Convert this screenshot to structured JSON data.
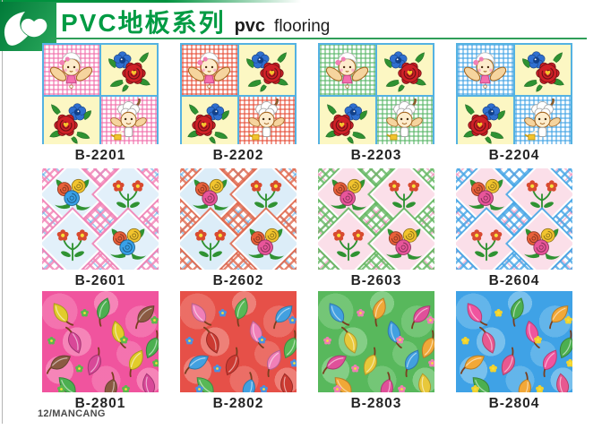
{
  "header": {
    "title_cn": "PVC地板系列",
    "title_en_bold": "pvc",
    "title_en_rest": "flooring"
  },
  "footer": {
    "label": "12/MANCANG"
  },
  "palette": {
    "brand_green": "#009b43",
    "header_rule": "#2f9e58",
    "frame_blue": "#54b2e2",
    "quad_yellow": "#fcf7c3",
    "rose_red": "#cf2027",
    "flower_blue": "#2f6fd0",
    "leaf_green": "#2f9232",
    "code_text": "#242424"
  },
  "products": [
    {
      "code": "B-2201",
      "type": "tile",
      "gingham": "#f06aa8"
    },
    {
      "code": "B-2202",
      "type": "tile",
      "gingham": "#e64a33"
    },
    {
      "code": "B-2203",
      "type": "tile",
      "gingham": "#55b564"
    },
    {
      "code": "B-2204",
      "type": "tile",
      "gingham": "#3da0e4"
    },
    {
      "code": "B-2601",
      "type": "lattice",
      "theme": "#f283b6",
      "accent": "#4aa0e0",
      "center": "#e2f0fa",
      "bouquet": [
        "#e8603a",
        "#f2c42e",
        "#38a0e8"
      ]
    },
    {
      "code": "B-2602",
      "type": "lattice",
      "theme": "#e06a50",
      "accent": "#4aa0e0",
      "center": "#dcedf8",
      "bouquet": [
        "#e8603a",
        "#f2c42e",
        "#e8559a"
      ]
    },
    {
      "code": "B-2603",
      "type": "lattice",
      "theme": "#66b864",
      "accent": "#e878a8",
      "center": "#fbdfe9",
      "bouquet": [
        "#e8603a",
        "#f2c42e",
        "#e8559a"
      ]
    },
    {
      "code": "B-2604",
      "type": "lattice",
      "theme": "#48a6e6",
      "accent": "#ee7fb2",
      "center": "#fbdfe9",
      "bouquet": [
        "#e8603a",
        "#f2c42e",
        "#e8559a"
      ]
    },
    {
      "code": "B-2801",
      "type": "leaves",
      "bg": "#f0549e",
      "blob": "#f9a6ca",
      "leaves": [
        "#e2cc2a",
        "#4caf50",
        "#8a5a42",
        "#d84898"
      ],
      "flower": "#5cb84c"
    },
    {
      "code": "B-2802",
      "type": "leaves",
      "bg": "#e65048",
      "blob": "#f4a098",
      "leaves": [
        "#f07fb8",
        "#58b856",
        "#42a0e0",
        "#cc3a32"
      ],
      "flower": "#4a90e0"
    },
    {
      "code": "B-2803",
      "type": "leaves",
      "bg": "#58b85c",
      "blob": "#a2dca2",
      "leaves": [
        "#42a0e0",
        "#f0a838",
        "#e0509a",
        "#e8c83a"
      ],
      "flower": "#ee7fb2"
    },
    {
      "code": "B-2804",
      "type": "leaves",
      "bg": "#3fa2e6",
      "blob": "#9ed4f2",
      "leaves": [
        "#f0549e",
        "#4caf50",
        "#f2a838",
        "#e85890"
      ],
      "flower": "#f2d22e"
    }
  ]
}
